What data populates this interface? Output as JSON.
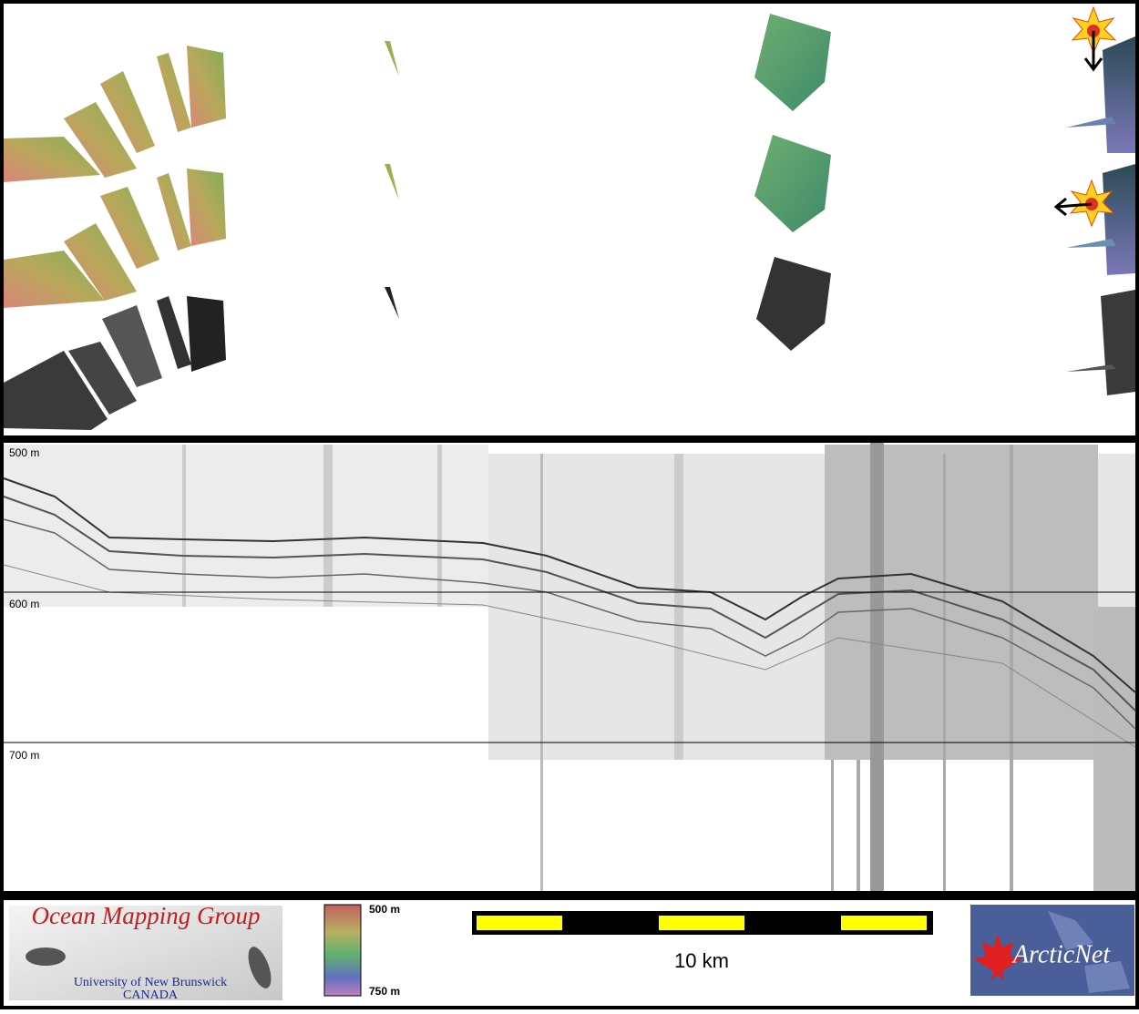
{
  "profile": {
    "depth_labels": [
      "500 m",
      "600 m",
      "700 m"
    ]
  },
  "footer": {
    "logo_title": "Ocean Mapping Group",
    "logo_subtitle": "University of New Brunswick",
    "logo_country": "CANADA",
    "colorbar_top": "500 m",
    "colorbar_bottom": "750 m",
    "scale_label": "10 km",
    "partner_logo": "ArcticNet"
  }
}
